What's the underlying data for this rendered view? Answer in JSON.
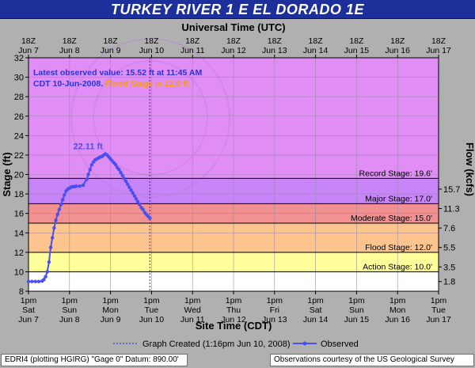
{
  "title": "TURKEY RIVER 1 E EL DORADO 1E",
  "info": {
    "latest_text": "Latest observed value: 15.52 ft at 11:45 AM CDT 10-Jun-2008.",
    "flood_text": "Flood Stage is 12.0 ft."
  },
  "footer": {
    "left": "EDRI4 (plotting HGIRG) \"Gage 0\" Datum: 890.00'",
    "right": "Observations courtesy of the  US Geological Survey"
  },
  "colors": {
    "record": "#e08ef6",
    "major": "#c885f8",
    "moderate_to_major": "#f19191",
    "flood_to_moderate": "#fdc48e",
    "action_to_flood": "#fefe9b",
    "below_action": "#ffffff",
    "observed": "#4a4ff0",
    "created_line": "#2727c0",
    "title_bg": "#1c2f9a"
  },
  "chart_data": {
    "type": "line",
    "title": "TURKEY RIVER 1 E EL DORADO 1E",
    "xlabel": "Site Time (CDT)",
    "x2label": "Universal Time (UTC)",
    "ylabel": "Stage (ft)",
    "y2label": "Flow (kcfs)",
    "ylim": [
      8,
      32
    ],
    "y_ticks": [
      8,
      10,
      12,
      14,
      16,
      18,
      20,
      22,
      24,
      26,
      28,
      30,
      32
    ],
    "flow_ticks": [
      {
        "stage": 9,
        "label": "1.8"
      },
      {
        "stage": 10.5,
        "label": "3.5"
      },
      {
        "stage": 12.5,
        "label": "5.5"
      },
      {
        "stage": 14.5,
        "label": "7.6"
      },
      {
        "stage": 16.5,
        "label": "11.3"
      },
      {
        "stage": 18.5,
        "label": "15.7"
      }
    ],
    "x_ticks_local": [
      {
        "t": 0,
        "line1": "1pm",
        "line2": "Sat",
        "line3": "Jun 7"
      },
      {
        "t": 24,
        "line1": "1pm",
        "line2": "Sun",
        "line3": "Jun 8"
      },
      {
        "t": 48,
        "line1": "1pm",
        "line2": "Mon",
        "line3": "Jun 9"
      },
      {
        "t": 72,
        "line1": "1pm",
        "line2": "Tue",
        "line3": "Jun 10"
      },
      {
        "t": 96,
        "line1": "1pm",
        "line2": "Wed",
        "line3": "Jun 11"
      },
      {
        "t": 120,
        "line1": "1pm",
        "line2": "Thu",
        "line3": "Jun 12"
      },
      {
        "t": 144,
        "line1": "1pm",
        "line2": "Fri",
        "line3": "Jun 13"
      },
      {
        "t": 168,
        "line1": "1pm",
        "line2": "Sat",
        "line3": "Jun 14"
      },
      {
        "t": 192,
        "line1": "1pm",
        "line2": "Sun",
        "line3": "Jun 15"
      },
      {
        "t": 216,
        "line1": "1pm",
        "line2": "Mon",
        "line3": "Jun 16"
      },
      {
        "t": 240,
        "line1": "1pm",
        "line2": "Tue",
        "line3": "Jun 17"
      }
    ],
    "x_ticks_utc": [
      {
        "t": 0,
        "line1": "18Z",
        "line2": "Jun 7"
      },
      {
        "t": 24,
        "line1": "18Z",
        "line2": "Jun 8"
      },
      {
        "t": 48,
        "line1": "18Z",
        "line2": "Jun 9"
      },
      {
        "t": 72,
        "line1": "18Z",
        "line2": "Jun 10"
      },
      {
        "t": 96,
        "line1": "18Z",
        "line2": "Jun 11"
      },
      {
        "t": 120,
        "line1": "18Z",
        "line2": "Jun 12"
      },
      {
        "t": 144,
        "line1": "18Z",
        "line2": "Jun 13"
      },
      {
        "t": 168,
        "line1": "18Z",
        "line2": "Jun 14"
      },
      {
        "t": 192,
        "line1": "18Z",
        "line2": "Jun 15"
      },
      {
        "t": 216,
        "line1": "18Z",
        "line2": "Jun 16"
      },
      {
        "t": 240,
        "line1": "18Z",
        "line2": "Jun 17"
      }
    ],
    "xlim": [
      0,
      240
    ],
    "thresholds": [
      {
        "name": "action",
        "stage": 10.0,
        "label": "Action Stage: 10.0'"
      },
      {
        "name": "flood",
        "stage": 12.0,
        "label": "Flood Stage: 12.0'"
      },
      {
        "name": "moderate",
        "stage": 15.0,
        "label": "Moderate Stage: 15.0'"
      },
      {
        "name": "major",
        "stage": 17.0,
        "label": "Major Stage: 17.0'"
      },
      {
        "name": "record",
        "stage": 19.6,
        "label": "Record Stage: 19.6'"
      }
    ],
    "graph_created_t": 71,
    "peak": {
      "t": 45,
      "stage": 22.11,
      "label": "22.11 ft"
    },
    "series": [
      {
        "name": "Observed",
        "x": [
          0,
          2,
          4,
          6,
          8,
          9,
          10,
          11,
          12,
          13,
          14,
          15,
          16,
          17,
          18,
          19,
          20,
          21,
          22,
          23,
          24,
          25,
          26,
          27,
          28,
          30,
          32,
          34,
          35,
          36,
          37,
          38,
          39,
          40,
          41,
          42,
          43,
          44,
          45,
          46,
          47,
          48,
          49,
          50,
          51,
          52,
          53,
          54,
          55,
          56,
          57,
          58,
          59,
          60,
          61,
          62,
          63,
          64,
          65,
          66,
          67,
          68,
          69,
          70,
          71
        ],
        "y": [
          9.0,
          9.0,
          9.0,
          9.0,
          9.05,
          9.2,
          9.5,
          10.0,
          11.0,
          12.5,
          13.5,
          14.5,
          15.3,
          15.9,
          16.4,
          16.9,
          17.4,
          17.9,
          18.3,
          18.5,
          18.6,
          18.7,
          18.75,
          18.75,
          18.8,
          18.8,
          18.9,
          19.5,
          20.0,
          20.5,
          21.0,
          21.3,
          21.5,
          21.6,
          21.7,
          21.8,
          21.85,
          22.0,
          22.11,
          22.0,
          21.8,
          21.6,
          21.4,
          21.2,
          21.0,
          20.7,
          20.5,
          20.2,
          19.9,
          19.6,
          19.3,
          19.0,
          18.7,
          18.4,
          18.1,
          17.8,
          17.5,
          17.2,
          16.9,
          16.6,
          16.4,
          16.1,
          15.9,
          15.7,
          15.52
        ]
      }
    ],
    "legend": [
      {
        "key": "graph_created",
        "label": "Graph Created  (1:16pm Jun 10, 2008)"
      },
      {
        "key": "observed",
        "label": "Observed"
      }
    ],
    "grid": true,
    "legend_position": "bottom"
  }
}
